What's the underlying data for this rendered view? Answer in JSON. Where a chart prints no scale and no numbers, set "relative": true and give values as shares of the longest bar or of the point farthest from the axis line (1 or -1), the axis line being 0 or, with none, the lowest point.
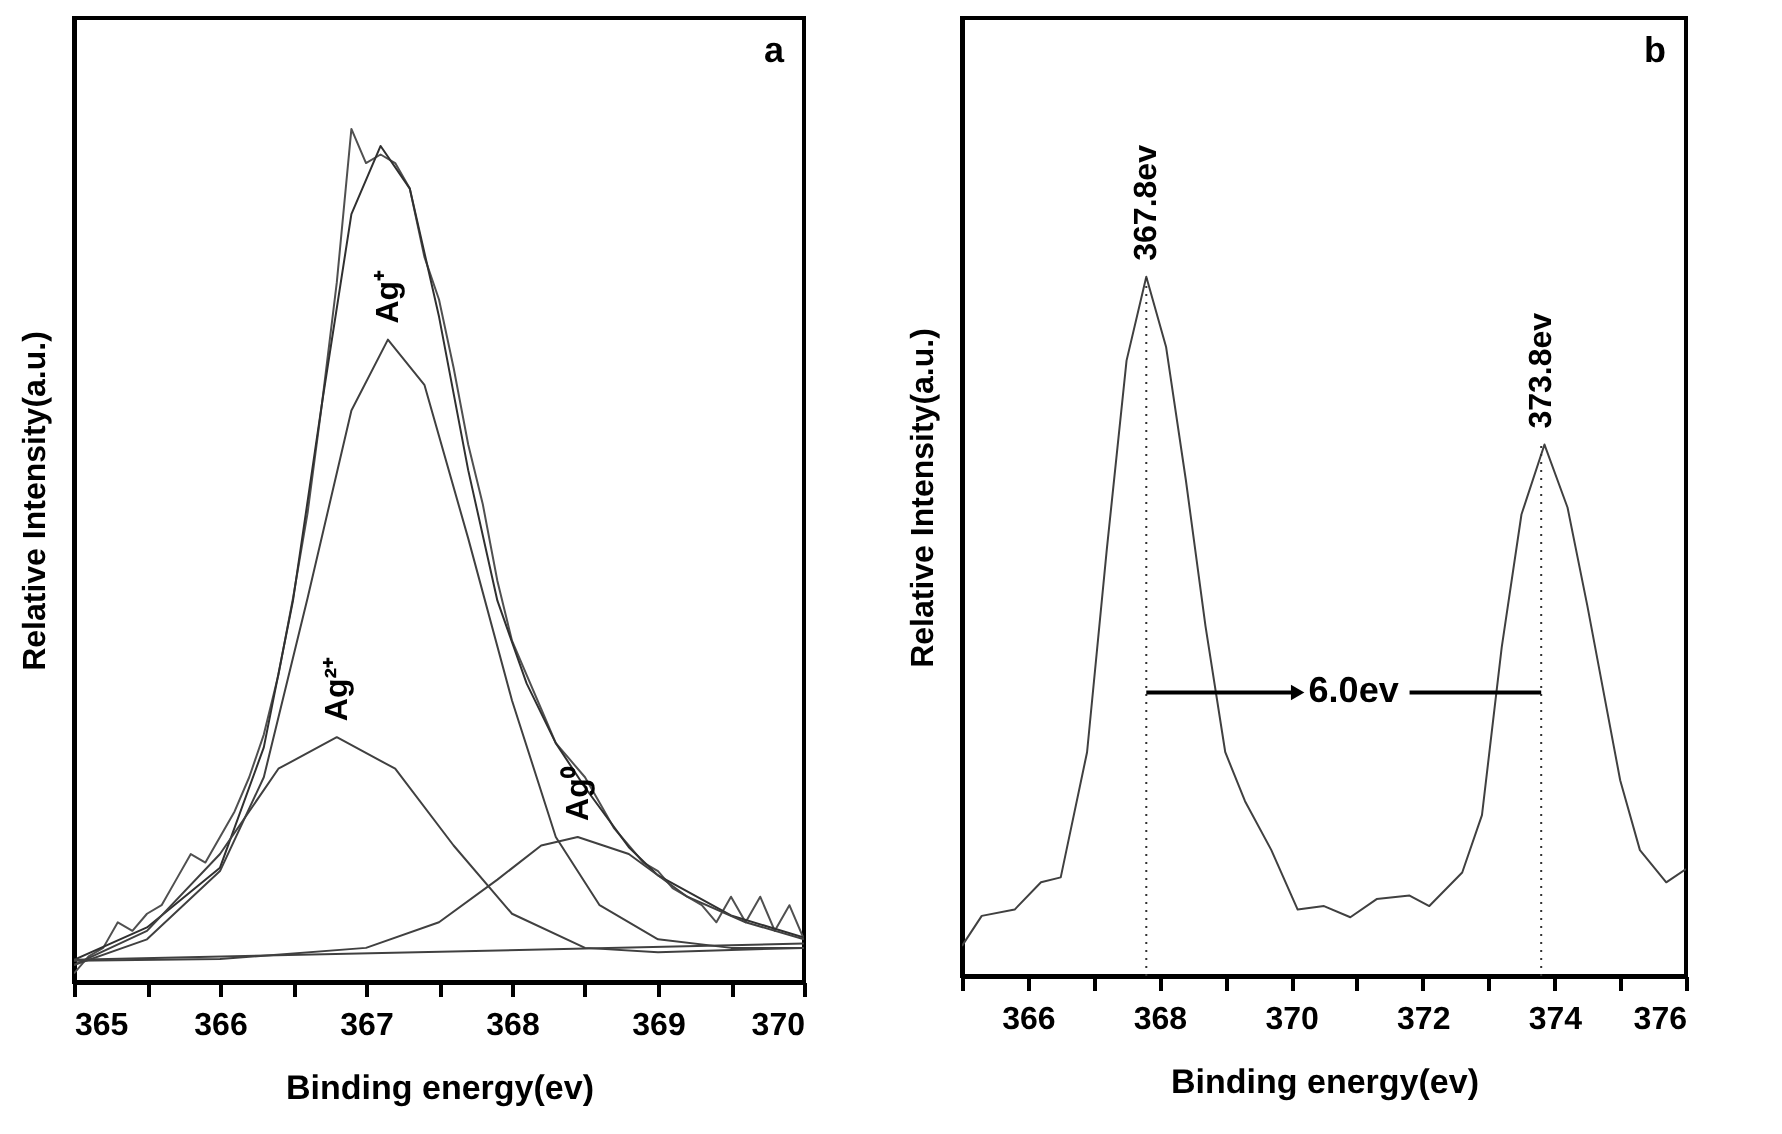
{
  "chart_data": [
    {
      "type": "line",
      "title": "a",
      "xlabel": "Binding energy(ev)",
      "ylabel": "Relative Intensity(a.u.)",
      "relative": true,
      "tick_labels": "x",
      "line_style": "solid",
      "xlim": [
        365,
        370
      ],
      "xticks": [
        365,
        {
          "value": 365.5,
          "label": null
        },
        366,
        {
          "value": 366.5,
          "label": null
        },
        367,
        {
          "value": 367.5,
          "label": null
        },
        368,
        {
          "value": 368.5,
          "label": null
        },
        369,
        {
          "value": 369.5,
          "label": null
        },
        370
      ],
      "series": [
        {
          "color": "#505050",
          "x": [
            365.0,
            365.1,
            365.2,
            365.3,
            365.4,
            365.5,
            365.6,
            365.7,
            365.8,
            365.9,
            366.0,
            366.1,
            366.2,
            366.3,
            366.4,
            366.5,
            366.6,
            366.7,
            366.8,
            366.9,
            367.0,
            367.1,
            367.2,
            367.3,
            367.4,
            367.5,
            367.6,
            367.7,
            367.8,
            367.9,
            368.0,
            368.1,
            368.2,
            368.3,
            368.4,
            368.5,
            368.6,
            368.7,
            368.8,
            368.9,
            369.0,
            369.1,
            369.2,
            369.3,
            369.4,
            369.5,
            369.6,
            369.7,
            369.8,
            369.9,
            370.0
          ],
          "values": [
            0.01,
            0.03,
            0.04,
            0.07,
            0.06,
            0.08,
            0.09,
            0.12,
            0.15,
            0.14,
            0.17,
            0.2,
            0.24,
            0.29,
            0.36,
            0.45,
            0.55,
            0.68,
            0.82,
            1.0,
            0.96,
            0.97,
            0.96,
            0.93,
            0.85,
            0.8,
            0.72,
            0.63,
            0.56,
            0.47,
            0.4,
            0.36,
            0.32,
            0.28,
            0.26,
            0.24,
            0.21,
            0.18,
            0.16,
            0.14,
            0.13,
            0.11,
            0.1,
            0.09,
            0.07,
            0.1,
            0.07,
            0.1,
            0.06,
            0.09,
            0.05
          ]
        },
        {
          "color": "#303030",
          "x": [
            365.0,
            365.5,
            366.0,
            366.3,
            366.5,
            366.7,
            366.9,
            367.1,
            367.3,
            367.5,
            367.7,
            367.9,
            368.1,
            368.3,
            368.5,
            368.8,
            369.0,
            369.5,
            370.0
          ],
          "values": [
            0.026,
            0.064,
            0.134,
            0.275,
            0.447,
            0.68,
            0.9,
            0.98,
            0.93,
            0.78,
            0.6,
            0.447,
            0.35,
            0.28,
            0.228,
            0.158,
            0.125,
            0.078,
            0.052
          ]
        },
        {
          "name": "Ag⁺",
          "color": "#404040",
          "x": [
            365.0,
            365.5,
            366.0,
            366.3,
            366.6,
            366.9,
            367.15,
            367.4,
            367.7,
            368.0,
            368.3,
            368.6,
            369.0,
            369.5,
            370.0
          ],
          "values": [
            0.02,
            0.05,
            0.13,
            0.24,
            0.45,
            0.67,
            0.753,
            0.7,
            0.52,
            0.33,
            0.17,
            0.09,
            0.05,
            0.04,
            0.04
          ]
        },
        {
          "name": "Ag²⁺",
          "color": "#404040",
          "x": [
            365.0,
            365.5,
            366.0,
            366.4,
            366.8,
            367.2,
            367.6,
            368.0,
            368.5,
            369.0,
            370.0
          ],
          "values": [
            0.02,
            0.06,
            0.15,
            0.25,
            0.287,
            0.25,
            0.16,
            0.08,
            0.04,
            0.035,
            0.04
          ]
        },
        {
          "name": "Ag⁰",
          "color": "#404040",
          "x": [
            365.0,
            366.0,
            367.0,
            367.5,
            367.9,
            368.2,
            368.45,
            368.8,
            369.2,
            369.6,
            370.0
          ],
          "values": [
            0.025,
            0.027,
            0.04,
            0.07,
            0.12,
            0.16,
            0.17,
            0.15,
            0.1,
            0.07,
            0.05
          ]
        },
        {
          "color": "#404040",
          "x": [
            365.0,
            370.0
          ],
          "values": [
            0.026,
            0.045
          ]
        }
      ]
    },
    {
      "type": "line",
      "title": "b",
      "xlabel": "Binding energy(ev)",
      "ylabel": "Relative Intensity(a.u.)",
      "relative": true,
      "tick_labels": "x",
      "line_style": "solid",
      "xlim": [
        365,
        376
      ],
      "xticks": [
        {
          "value": 365,
          "label": null
        },
        366,
        {
          "value": 367,
          "label": null
        },
        368,
        {
          "value": 369,
          "label": null
        },
        370,
        {
          "value": 371,
          "label": null
        },
        372,
        {
          "value": 373,
          "label": null
        },
        374,
        {
          "value": 375,
          "label": null
        },
        376
      ],
      "series": [
        {
          "color": "#404040",
          "x": [
            365.0,
            365.3,
            365.8,
            366.2,
            366.5,
            366.9,
            367.2,
            367.5,
            367.8,
            368.1,
            368.4,
            368.7,
            369.0,
            369.3,
            369.7,
            370.1,
            370.5,
            370.9,
            371.3,
            371.8,
            372.1,
            372.6,
            372.9,
            373.2,
            373.5,
            373.85,
            374.2,
            374.5,
            375.0,
            375.3,
            375.7,
            376.0
          ],
          "values": [
            0.043,
            0.086,
            0.095,
            0.134,
            0.141,
            0.32,
            0.61,
            0.88,
            1.0,
            0.9,
            0.71,
            0.5,
            0.32,
            0.25,
            0.18,
            0.095,
            0.1,
            0.084,
            0.11,
            0.115,
            0.1,
            0.148,
            0.23,
            0.47,
            0.66,
            0.76,
            0.67,
            0.53,
            0.28,
            0.18,
            0.134,
            0.153
          ]
        }
      ],
      "ref_lines": [
        {
          "axis": "x",
          "value": 367.8,
          "label": "367.8ev",
          "line_style": "dotted"
        },
        {
          "axis": "x",
          "value": 373.8,
          "label": "373.8ev",
          "line_style": "dotted"
        }
      ],
      "annotations": [
        "6.0ev"
      ]
    }
  ]
}
